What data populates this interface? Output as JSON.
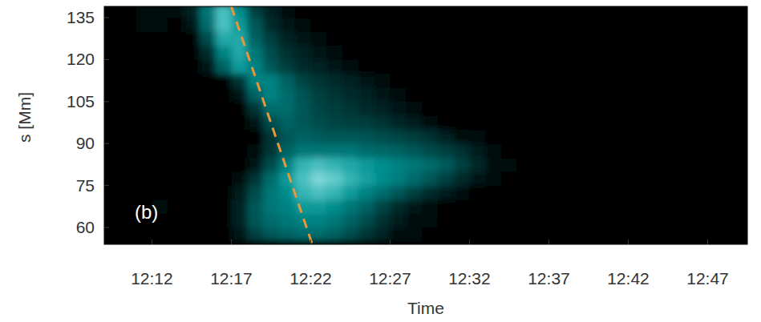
{
  "chart_data": {
    "type": "heatmap",
    "panel_label": "(b)",
    "x_label": "Time",
    "y_label": "s [Mm]",
    "xlim": [
      9,
      49.5
    ],
    "ylim": [
      54,
      139
    ],
    "xticks": [
      {
        "value": 12,
        "label": "12:12"
      },
      {
        "value": 17,
        "label": "12:17"
      },
      {
        "value": 22,
        "label": "12:22"
      },
      {
        "value": 27,
        "label": "12:27"
      },
      {
        "value": 32,
        "label": "12:32"
      },
      {
        "value": 37,
        "label": "12:37"
      },
      {
        "value": 42,
        "label": "12:42"
      },
      {
        "value": 47,
        "label": "12:47"
      }
    ],
    "yticks": [
      60,
      75,
      90,
      105,
      120,
      135
    ],
    "grid": false,
    "color": "#00ffff",
    "color_range": [
      0,
      100
    ],
    "x_edges": [
      11,
      12,
      13,
      14,
      15,
      16,
      17,
      18,
      19,
      20,
      21,
      22,
      23,
      24,
      25,
      26,
      27,
      28,
      29,
      30,
      31,
      32,
      33,
      34,
      35,
      36,
      37
    ],
    "y_edges": [
      55,
      60,
      65,
      70,
      75,
      80,
      85,
      90,
      95,
      100,
      105,
      110,
      115,
      120,
      125,
      130,
      135,
      140
    ],
    "cells": [
      [
        0,
        0,
        0,
        0,
        0,
        0,
        10,
        30,
        40,
        45,
        50,
        50,
        45,
        35,
        25,
        15,
        8,
        4,
        0,
        0,
        0,
        0,
        0,
        0,
        0,
        0
      ],
      [
        0,
        0,
        0,
        0,
        0,
        0,
        15,
        40,
        50,
        55,
        60,
        60,
        55,
        45,
        35,
        22,
        12,
        6,
        3,
        0,
        0,
        0,
        0,
        0,
        0,
        0
      ],
      [
        0,
        5,
        0,
        0,
        0,
        0,
        15,
        40,
        55,
        60,
        70,
        70,
        65,
        55,
        45,
        32,
        20,
        10,
        5,
        0,
        0,
        0,
        0,
        0,
        0,
        0
      ],
      [
        0,
        0,
        0,
        0,
        0,
        0,
        12,
        35,
        55,
        65,
        80,
        85,
        80,
        70,
        60,
        50,
        40,
        30,
        20,
        12,
        6,
        0,
        0,
        0,
        0,
        0
      ],
      [
        0,
        0,
        0,
        0,
        0,
        0,
        5,
        25,
        50,
        70,
        85,
        95,
        90,
        80,
        72,
        65,
        58,
        50,
        40,
        30,
        20,
        10,
        4,
        0,
        0,
        0
      ],
      [
        0,
        0,
        0,
        0,
        0,
        0,
        0,
        10,
        35,
        60,
        80,
        85,
        80,
        75,
        70,
        65,
        60,
        55,
        50,
        42,
        30,
        18,
        8,
        3,
        0,
        0
      ],
      [
        0,
        0,
        0,
        0,
        0,
        0,
        0,
        5,
        25,
        45,
        55,
        55,
        55,
        55,
        50,
        48,
        45,
        40,
        35,
        30,
        22,
        14,
        6,
        0,
        0,
        0
      ],
      [
        0,
        0,
        0,
        0,
        0,
        0,
        0,
        0,
        25,
        40,
        45,
        42,
        40,
        40,
        38,
        35,
        32,
        28,
        22,
        15,
        8,
        3,
        0,
        0,
        0,
        0
      ],
      [
        0,
        0,
        0,
        0,
        0,
        0,
        0,
        10,
        35,
        45,
        40,
        35,
        32,
        30,
        28,
        24,
        18,
        12,
        6,
        0,
        0,
        0,
        0,
        0,
        0,
        0
      ],
      [
        0,
        0,
        0,
        0,
        0,
        0,
        0,
        25,
        50,
        50,
        40,
        32,
        28,
        25,
        20,
        15,
        10,
        5,
        0,
        0,
        0,
        0,
        0,
        0,
        0,
        0
      ],
      [
        0,
        0,
        0,
        0,
        0,
        0,
        10,
        45,
        60,
        50,
        38,
        30,
        25,
        20,
        15,
        10,
        5,
        0,
        0,
        0,
        0,
        0,
        0,
        0,
        0,
        0
      ],
      [
        0,
        0,
        0,
        0,
        0,
        0,
        25,
        60,
        60,
        45,
        32,
        25,
        20,
        15,
        10,
        6,
        0,
        0,
        0,
        0,
        0,
        0,
        0,
        0,
        0,
        0
      ],
      [
        0,
        0,
        0,
        0,
        10,
        45,
        70,
        60,
        40,
        28,
        20,
        15,
        10,
        6,
        0,
        0,
        0,
        0,
        0,
        0,
        0,
        0,
        0,
        0,
        0,
        0
      ],
      [
        0,
        0,
        0,
        0,
        20,
        60,
        75,
        55,
        35,
        22,
        15,
        10,
        6,
        0,
        0,
        0,
        0,
        0,
        0,
        0,
        0,
        0,
        0,
        0,
        0,
        0
      ],
      [
        0,
        0,
        0,
        0,
        35,
        75,
        75,
        45,
        28,
        15,
        10,
        6,
        0,
        0,
        0,
        0,
        0,
        0,
        0,
        0,
        0,
        0,
        0,
        0,
        0,
        0
      ],
      [
        5,
        5,
        0,
        10,
        50,
        85,
        70,
        40,
        20,
        10,
        5,
        0,
        0,
        0,
        0,
        0,
        0,
        0,
        0,
        0,
        0,
        0,
        0,
        0,
        0,
        0
      ],
      [
        8,
        5,
        3,
        15,
        55,
        85,
        65,
        30,
        15,
        6,
        0,
        0,
        0,
        0,
        0,
        0,
        0,
        0,
        0,
        0,
        0,
        0,
        0,
        0,
        0,
        0
      ]
    ],
    "series": [
      {
        "type": "line",
        "color": "#e8963c",
        "line_style": "dashed",
        "x": [
          17.0,
          22.1
        ],
        "values": [
          139,
          54
        ]
      }
    ]
  }
}
